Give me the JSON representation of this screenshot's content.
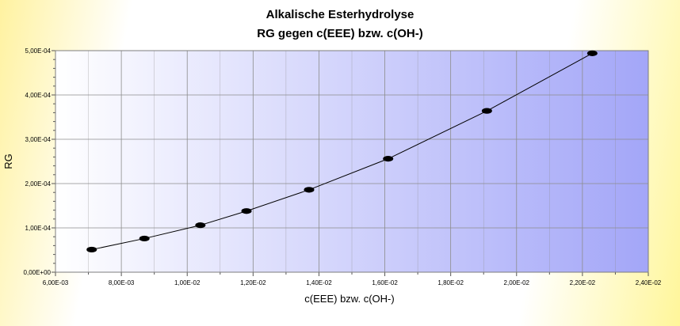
{
  "chart_data": {
    "type": "scatter",
    "title": "Alkalische Esterhydrolyse",
    "subtitle": "RG gegen c(EEE) bzw. c(OH-)",
    "xlabel": "c(EEE) bzw. c(OH-)",
    "ylabel": "RG",
    "xlim": [
      0.006,
      0.024
    ],
    "ylim": [
      0,
      0.0005
    ],
    "x_ticks": [
      "6,00E-03",
      "8,00E-03",
      "1,00E-02",
      "1,20E-02",
      "1,40E-02",
      "1,60E-02",
      "1,80E-02",
      "2,00E-02",
      "2,20E-02",
      "2,40E-02"
    ],
    "y_ticks": [
      "0,00E+00",
      "1,00E-04",
      "2,00E-04",
      "3,00E-04",
      "4,00E-04",
      "5,00E-04"
    ],
    "grid": true,
    "series": [
      {
        "x": [
          0.0071,
          0.0087,
          0.0104,
          0.0118,
          0.0137,
          0.0161,
          0.0191,
          0.0223
        ],
        "y": [
          5.1e-05,
          7.6e-05,
          0.000106,
          0.000138,
          0.000186,
          0.000256,
          0.000364,
          0.000494
        ]
      }
    ],
    "colors": {
      "plot_bg_start": "#ffffff",
      "plot_bg_end": "#a3a6f8",
      "grid": "#8c8c8c",
      "line": "#000000",
      "marker": "#000000"
    }
  }
}
